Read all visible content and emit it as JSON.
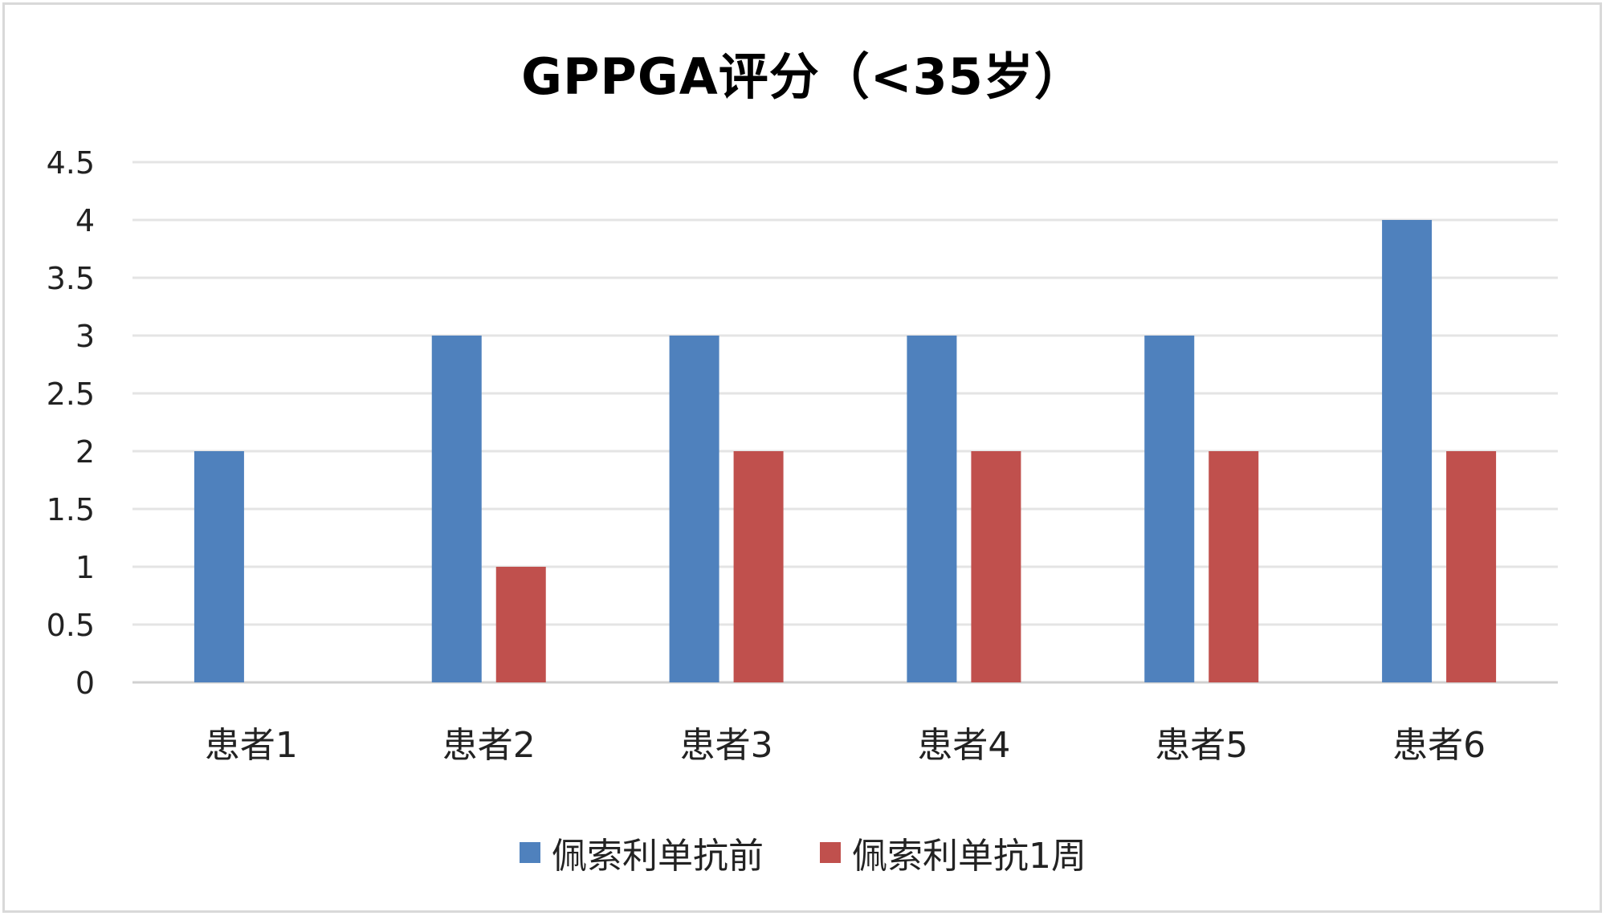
{
  "chart_data": {
    "type": "bar",
    "title": "GPPGA评分（<35岁）",
    "categories": [
      "患者1",
      "患者2",
      "患者3",
      "患者4",
      "患者5",
      "患者6"
    ],
    "series": [
      {
        "name": "佩索利单抗前",
        "color": "#4f81bd",
        "values": [
          2,
          3,
          3,
          3,
          3,
          4
        ]
      },
      {
        "name": "佩索利单抗1周",
        "color": "#c0504d",
        "values": [
          0,
          1,
          2,
          2,
          2,
          2
        ]
      }
    ],
    "xlabel": "",
    "ylabel": "",
    "ylim": [
      0,
      4.5
    ],
    "yticks": [
      "0",
      "0.5",
      "1",
      "1.5",
      "2",
      "2.5",
      "3",
      "3.5",
      "4",
      "4.5"
    ],
    "grid": true,
    "legend_position": "bottom"
  }
}
